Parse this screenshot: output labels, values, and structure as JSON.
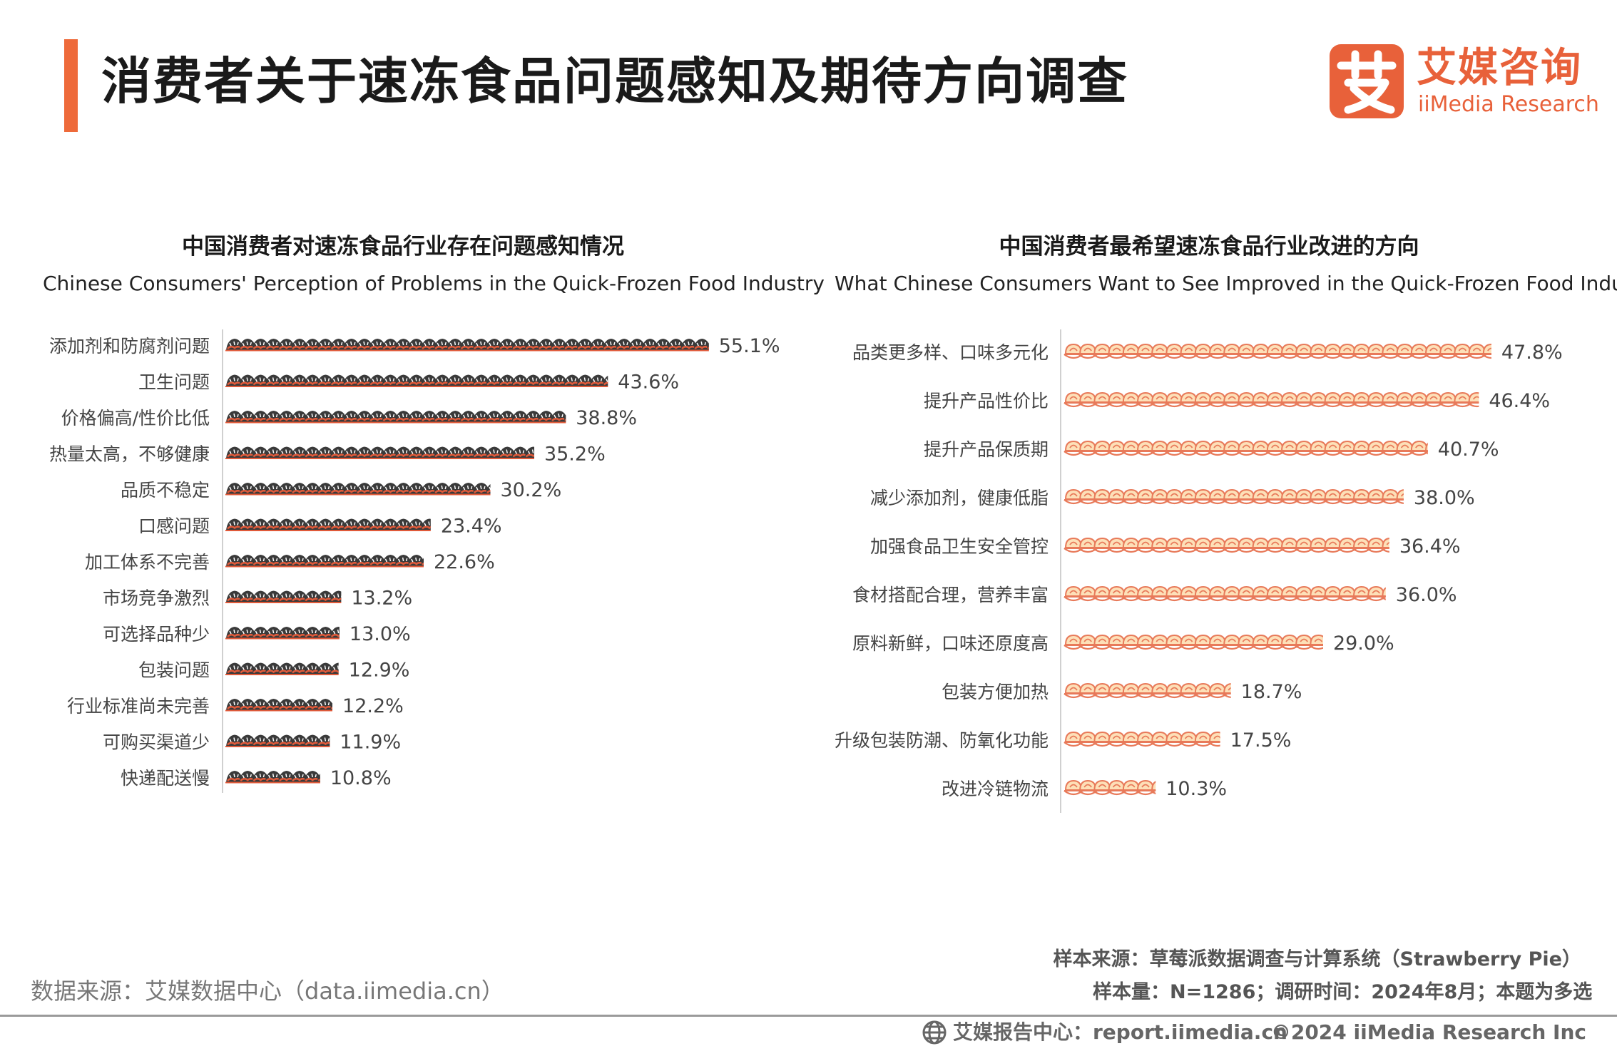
{
  "page": {
    "title": "消费者关于速冻食品问题感知及期待方向调查"
  },
  "logo": {
    "glyph": "艾",
    "name_cn": "艾媒咨询",
    "name_en": "iiMedia Research",
    "color": "#e8613a"
  },
  "colors": {
    "accent": "#ee6a3a",
    "left_icon": "#3a3a3a",
    "left_icon_accent": "#e05a3a",
    "right_icon": "#e87a5a",
    "right_icon_fill": "#fde0b8"
  },
  "chart_data": [
    {
      "type": "bar",
      "title": "中国消费者对速冻食品行业存在问题感知情况",
      "subtitle": "Chinese Consumers' Perception of Problems in the Quick-Frozen Food Industry",
      "icon": "dumpling-icon",
      "unit": "%",
      "categories": [
        "添加剂和防腐剂问题",
        "卫生问题",
        "价格偏高/性价比低",
        "热量太高，不够健康",
        "品质不稳定",
        "口感问题",
        "加工体系不完善",
        "市场竞争激烈",
        "可选择品种少",
        "包装问题",
        "行业标准尚未完善",
        "可购买渠道少",
        "快递配送慢"
      ],
      "values": [
        55.1,
        43.6,
        38.8,
        35.2,
        30.2,
        23.4,
        22.6,
        13.2,
        13.0,
        12.9,
        12.2,
        11.9,
        10.8
      ],
      "labels": [
        "55.1%",
        "43.6%",
        "38.8%",
        "35.2%",
        "30.2%",
        "23.4%",
        "22.6%",
        "13.2%",
        "13.0%",
        "12.9%",
        "12.2%",
        "11.9%",
        "10.8%"
      ]
    },
    {
      "type": "bar",
      "title": "中国消费者最希望速冻食品行业改进的方向",
      "subtitle": "What Chinese Consumers Want to See Improved in the Quick-Frozen Food Industry",
      "icon": "bun-icon",
      "unit": "%",
      "categories": [
        "品类更多样、口味多元化",
        "提升产品性价比",
        "提升产品保质期",
        "减少添加剂，健康低脂",
        "加强食品卫生安全管控",
        "食材搭配合理，营养丰富",
        "原料新鲜，口味还原度高",
        "包装方便加热",
        "升级包装防潮、防氧化功能",
        "改进冷链物流"
      ],
      "values": [
        47.8,
        46.4,
        40.7,
        38.0,
        36.4,
        36.0,
        29.0,
        18.7,
        17.5,
        10.3
      ],
      "labels": [
        "47.8%",
        "46.4%",
        "40.7%",
        "38.0%",
        "36.4%",
        "36.0%",
        "29.0%",
        "18.7%",
        "17.5%",
        "10.3%"
      ]
    }
  ],
  "footer": {
    "data_source": "数据来源：艾媒数据中心（data.iimedia.cn）",
    "sample_source": "样本来源：草莓派数据调查与计算系统（Strawberry Pie）",
    "sample_info": "样本量：N=1286；调研时间：2024年8月；本题为多选",
    "report_center": "艾媒报告中心：report.iimedia.cn",
    "copyright": "©2024  iiMedia Research  Inc"
  }
}
